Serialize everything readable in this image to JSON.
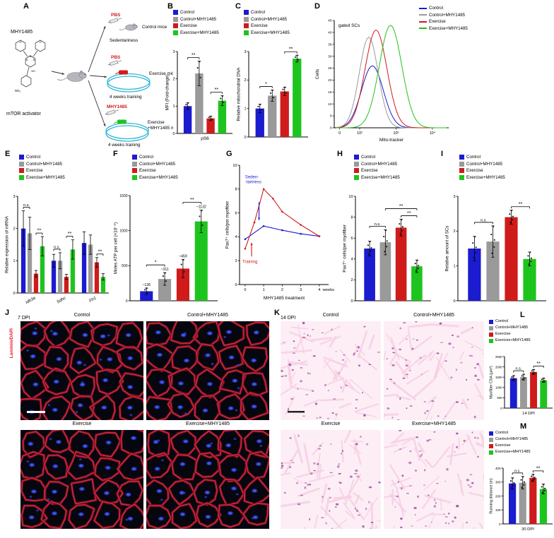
{
  "colors": {
    "control": "#1b1bd0",
    "control_mhy": "#9a9a9a",
    "exercise": "#d01b1b",
    "exercise_mhy": "#1ec41e",
    "stain_red": "#e8192c",
    "treadmill_cyan": "#2ab5d6"
  },
  "legend_labels": [
    "Control",
    "Control+MHY1485",
    "Exercise",
    "Exercise+MHY1485"
  ],
  "panels": {
    "A": {
      "letter": "A"
    },
    "B": {
      "letter": "B"
    },
    "C": {
      "letter": "C"
    },
    "D": {
      "letter": "D"
    },
    "E": {
      "letter": "E"
    },
    "F": {
      "letter": "F"
    },
    "G": {
      "letter": "G"
    },
    "H": {
      "letter": "H"
    },
    "I": {
      "letter": "I"
    },
    "J": {
      "letter": "J"
    },
    "K": {
      "letter": "K"
    },
    "L": {
      "letter": "L"
    },
    "M": {
      "letter": "M"
    }
  },
  "panelA": {
    "drug": "MHY1485",
    "drug_role": "mTOR activator",
    "no2": "NO₂",
    "rows": [
      {
        "inject": "PBS",
        "label": "Control mice",
        "sub": "Sedentariness"
      },
      {
        "inject": "PBS",
        "label": "Exercise mice",
        "sub": "4 weeks training"
      },
      {
        "inject": "MHY1485",
        "label": "Exercise +MHY1485 mice",
        "sub": "4 weeks training"
      }
    ]
  },
  "panelJ": {
    "dpi": "7 DPI",
    "stain": "Laminin/DAPI",
    "labels": [
      "Control",
      "Control+MHY1485",
      "Exercise",
      "Exercise+MHY1485"
    ]
  },
  "panelK": {
    "dpi": "14 DPI",
    "labels": [
      "Control",
      "Control+MHY1485",
      "Exercise",
      "Exercise+MHY1485"
    ]
  },
  "chart_data": [
    {
      "id": "B",
      "type": "bar",
      "ylabel": "MFI (Fold-change)",
      "ylim": [
        0,
        3
      ],
      "yticks": [
        0,
        1,
        2,
        3
      ],
      "categories": [
        "pS6"
      ],
      "series": [
        {
          "name": "Control",
          "color": "control",
          "values": [
            1.0
          ],
          "errors": [
            0.12
          ]
        },
        {
          "name": "Control+MHY1485",
          "color": "control_mhy",
          "values": [
            2.2
          ],
          "errors": [
            0.45
          ]
        },
        {
          "name": "Exercise",
          "color": "exercise",
          "values": [
            0.55
          ],
          "errors": [
            0.08
          ]
        },
        {
          "name": "Exercise+MHY1485",
          "color": "exercise_mhy",
          "values": [
            1.2
          ],
          "errors": [
            0.18
          ]
        }
      ],
      "sig": [
        {
          "pair": [
            0,
            1
          ],
          "label": "**"
        },
        {
          "pair": [
            2,
            3
          ],
          "label": "**"
        }
      ],
      "dots": 3
    },
    {
      "id": "C",
      "type": "bar",
      "ylabel": "Relative mitochondrial DNA",
      "ylim": [
        0,
        3
      ],
      "yticks": [
        0,
        1,
        2,
        3
      ],
      "categories": [
        ""
      ],
      "series": [
        {
          "name": "Control",
          "color": "control",
          "values": [
            1.0
          ],
          "errors": [
            0.15
          ]
        },
        {
          "name": "Control+MHY1485",
          "color": "control_mhy",
          "values": [
            1.45
          ],
          "errors": [
            0.2
          ]
        },
        {
          "name": "Exercise",
          "color": "exercise",
          "values": [
            1.6
          ],
          "errors": [
            0.15
          ]
        },
        {
          "name": "Exercise+MHY1485",
          "color": "exercise_mhy",
          "values": [
            2.75
          ],
          "errors": [
            0.12
          ]
        }
      ],
      "sig": [
        {
          "pair": [
            0,
            1
          ],
          "label": "*"
        },
        {
          "pair": [
            2,
            3
          ],
          "label": "**"
        }
      ],
      "dots": 3
    },
    {
      "id": "D",
      "type": "flow",
      "title": "gated SCs",
      "ylabel": "Cells",
      "xlabel": "Mito-tracker",
      "ylim": [
        0,
        45
      ],
      "yticks": [
        0,
        5,
        10,
        15,
        20,
        25,
        30,
        35,
        40,
        45
      ],
      "xlim": [
        1.3,
        4.45
      ],
      "xticks": [
        {
          "pos": 1.45,
          "label": "0"
        },
        {
          "pos": 2,
          "label": "10²"
        },
        {
          "pos": 3,
          "label": "10³"
        },
        {
          "pos": 4,
          "label": "10⁴"
        }
      ],
      "series": [
        {
          "name": "Control",
          "color": "control",
          "peak": 2.35,
          "sigma": 0.3,
          "height": 26
        },
        {
          "name": "Control+MHY1485",
          "color": "control_mhy",
          "peak": 2.25,
          "sigma": 0.26,
          "height": 38
        },
        {
          "name": "Exercise",
          "color": "exercise",
          "peak": 2.45,
          "sigma": 0.3,
          "height": 41
        },
        {
          "name": "Exercise+MHY1485",
          "color": "exercise_mhy",
          "peak": 2.85,
          "sigma": 0.31,
          "height": 43
        }
      ]
    },
    {
      "id": "E",
      "type": "bar",
      "ylabel": "Relative expression of mRNA",
      "ylim": [
        0,
        3
      ],
      "yticks": [
        0,
        1,
        2,
        3
      ],
      "categories": [
        "Idh3a",
        "Sdhc",
        "Fh1"
      ],
      "cat_italic": true,
      "series": [
        {
          "name": "Control",
          "color": "control",
          "values": [
            2.0,
            1.0,
            1.55
          ],
          "errors": [
            0.55,
            0.2,
            0.35
          ]
        },
        {
          "name": "Control+MHY1485",
          "color": "control_mhy",
          "values": [
            1.85,
            1.0,
            1.5
          ],
          "errors": [
            0.5,
            0.25,
            0.3
          ]
        },
        {
          "name": "Exercise",
          "color": "exercise",
          "values": [
            0.6,
            0.5,
            0.95
          ],
          "errors": [
            0.1,
            0.08,
            0.15
          ]
        },
        {
          "name": "Exercise+MHY1485",
          "color": "exercise_mhy",
          "values": [
            1.45,
            1.35,
            0.5
          ],
          "errors": [
            0.3,
            0.3,
            0.1
          ]
        }
      ],
      "sig": [
        {
          "cat": 0,
          "pair": [
            0,
            1
          ],
          "label": "n.s."
        },
        {
          "cat": 0,
          "pair": [
            2,
            3
          ],
          "label": "**"
        },
        {
          "cat": 1,
          "pair": [
            0,
            1
          ],
          "label": "n.s."
        },
        {
          "cat": 1,
          "pair": [
            2,
            3
          ],
          "label": "**"
        },
        {
          "cat": 2,
          "pair": [
            2,
            3
          ],
          "label": "**"
        }
      ]
    },
    {
      "id": "F",
      "type": "bar",
      "ylabel": "Moles ATP per cell (×10⁻⁹)",
      "ylim": [
        0,
        1500
      ],
      "yticks": [
        0,
        500,
        1000,
        1500
      ],
      "categories": [
        ""
      ],
      "series": [
        {
          "name": "Control",
          "color": "control",
          "values": [
            136
          ],
          "errors": [
            45
          ]
        },
        {
          "name": "Control+MHY1485",
          "color": "control_mhy",
          "values": [
            311
          ],
          "errors": [
            90
          ]
        },
        {
          "name": "Exercise",
          "color": "exercise",
          "values": [
            459
          ],
          "errors": [
            130
          ]
        },
        {
          "name": "Exercise+MHY1485",
          "color": "exercise_mhy",
          "values": [
            1132
          ],
          "errors": [
            160
          ]
        }
      ],
      "bar_labels": [
        "~136",
        "~311",
        "~459",
        "~1132"
      ],
      "sig": [
        {
          "pair": [
            0,
            1
          ],
          "label": "*"
        },
        {
          "pair": [
            2,
            3
          ],
          "label": "**"
        }
      ],
      "dots": 3,
      "sig_clear": 11
    },
    {
      "id": "G",
      "type": "line",
      "ylabel": "Pax7⁺ cells/per myofiber",
      "xlabel": "MHY1485 treatment",
      "x_unit": "weeks",
      "xlim": [
        -0.3,
        4.5
      ],
      "xticks": [
        0,
        1,
        2,
        3,
        4
      ],
      "ylim": [
        0,
        10
      ],
      "yticks": [
        0,
        2,
        4,
        6,
        8,
        10
      ],
      "series": [
        {
          "name": "Sedentariness",
          "color": "control",
          "x": [
            0,
            1,
            2,
            3,
            4
          ],
          "y": [
            3.8,
            4.9,
            4.55,
            4.25,
            4.05
          ]
        },
        {
          "name": "Training",
          "color": "exercise",
          "x": [
            0,
            0.5,
            1,
            1.5,
            2,
            3,
            4
          ],
          "y": [
            3.0,
            5.2,
            8.0,
            7.2,
            6.1,
            5.0,
            4.05
          ]
        }
      ],
      "annotations": [
        {
          "lines": [
            "Seden-",
            "-tariness"
          ],
          "color": "control",
          "tx": 0.0,
          "ty": 8.9,
          "ax": 0.75,
          "ay1": 6.9,
          "ay2": 5.4
        },
        {
          "lines": [
            "Training"
          ],
          "color": "exercise",
          "tx": -0.15,
          "ty": 1.8,
          "ax": 0.35,
          "ay1": 2.35,
          "ay2": 3.5
        }
      ]
    },
    {
      "id": "H",
      "type": "bar",
      "ylabel": "Pax7⁺ cells/per myofiber",
      "ylim": [
        0,
        10
      ],
      "yticks": [
        0,
        2,
        4,
        6,
        8,
        10
      ],
      "categories": [
        ""
      ],
      "series": [
        {
          "name": "Control",
          "color": "control",
          "values": [
            5.0
          ],
          "errors": [
            0.7
          ]
        },
        {
          "name": "Control+MHY1485",
          "color": "control_mhy",
          "values": [
            5.6
          ],
          "errors": [
            1.2
          ]
        },
        {
          "name": "Exercise",
          "color": "exercise",
          "values": [
            7.0
          ],
          "errors": [
            0.8
          ]
        },
        {
          "name": "Exercise+MHY1485",
          "color": "exercise_mhy",
          "values": [
            3.3
          ],
          "errors": [
            0.6
          ]
        }
      ],
      "sig": [
        {
          "pair": [
            0,
            1
          ],
          "label": "n.s."
        },
        {
          "pair": [
            2,
            3
          ],
          "label": "**"
        },
        {
          "pair": [
            1,
            3
          ],
          "label": "**",
          "level": 1
        }
      ],
      "dots": 5
    },
    {
      "id": "I",
      "type": "bar",
      "ylabel": "Relative amount of SCs",
      "ylim": [
        0,
        3
      ],
      "yticks": [
        0,
        1,
        2,
        3
      ],
      "categories": [
        ""
      ],
      "series": [
        {
          "name": "Control",
          "color": "control",
          "values": [
            1.5
          ],
          "errors": [
            0.35
          ]
        },
        {
          "name": "Control+MHY1485",
          "color": "control_mhy",
          "values": [
            1.7
          ],
          "errors": [
            0.45
          ]
        },
        {
          "name": "Exercise",
          "color": "exercise",
          "values": [
            2.4
          ],
          "errors": [
            0.2
          ]
        },
        {
          "name": "Exercise+MHY1485",
          "color": "exercise_mhy",
          "values": [
            1.2
          ],
          "errors": [
            0.2
          ]
        }
      ],
      "sig": [
        {
          "pair": [
            0,
            1
          ],
          "label": "n.s."
        },
        {
          "pair": [
            2,
            3
          ],
          "label": "**"
        }
      ],
      "dots": 5
    },
    {
      "id": "L",
      "type": "bar",
      "ylabel": "Myofiber CSA (μm²)",
      "ylim": [
        0,
        2500
      ],
      "yticks": [
        0,
        500,
        1000,
        1500,
        2000,
        2500
      ],
      "categories": [
        "14 DPI"
      ],
      "series": [
        {
          "name": "Control",
          "color": "control",
          "values": [
            1450
          ],
          "errors": [
            120
          ]
        },
        {
          "name": "Control+MHY1485",
          "color": "control_mhy",
          "values": [
            1500
          ],
          "errors": [
            140
          ]
        },
        {
          "name": "Exercise",
          "color": "exercise",
          "values": [
            1750
          ],
          "errors": [
            120
          ]
        },
        {
          "name": "Exercise+MHY1485",
          "color": "exercise_mhy",
          "values": [
            1350
          ],
          "errors": [
            100
          ]
        }
      ],
      "sig": [
        {
          "pair": [
            0,
            1
          ],
          "label": "n.s."
        },
        {
          "pair": [
            2,
            3
          ],
          "label": "**"
        }
      ],
      "dots": 4
    },
    {
      "id": "M",
      "type": "bar",
      "ylabel": "Running distance (m)",
      "ylim": [
        0,
        400
      ],
      "yticks": [
        0,
        100,
        200,
        300,
        400
      ],
      "categories": [
        "30 DPI"
      ],
      "series": [
        {
          "name": "Control",
          "color": "control",
          "values": [
            290
          ],
          "errors": [
            40
          ]
        },
        {
          "name": "Control+MHY1485",
          "color": "control_mhy",
          "values": [
            295
          ],
          "errors": [
            45
          ]
        },
        {
          "name": "Exercise",
          "color": "exercise",
          "values": [
            330
          ],
          "errors": [
            25
          ]
        },
        {
          "name": "Exercise+MHY1485",
          "color": "exercise_mhy",
          "values": [
            250
          ],
          "errors": [
            35
          ]
        }
      ],
      "sig": [
        {
          "pair": [
            0,
            1
          ],
          "label": "n.s."
        },
        {
          "pair": [
            2,
            3
          ],
          "label": "**"
        }
      ],
      "dots": 5
    }
  ]
}
